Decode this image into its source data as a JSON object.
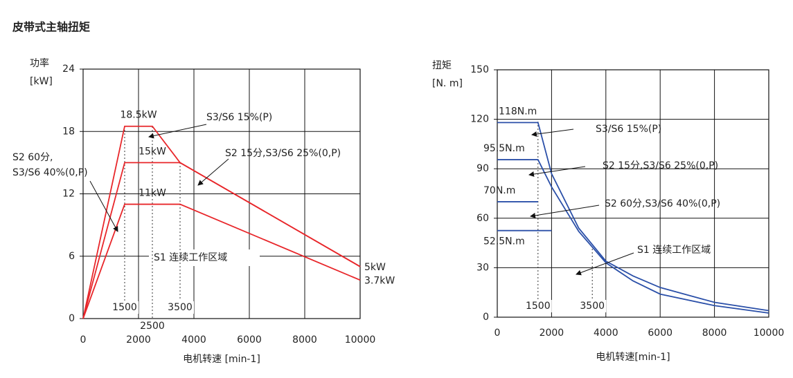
{
  "title": "皮带式主轴扭矩",
  "chart_data": [
    {
      "type": "line",
      "ylabel": "功率",
      "ylabel_unit": "[kW]",
      "xlabel": "电机转速 [min-1]",
      "xlim": [
        0,
        10000
      ],
      "xticks": [
        0,
        2000,
        4000,
        6000,
        8000,
        10000
      ],
      "ylim": [
        0,
        24
      ],
      "yticks": [
        0,
        6,
        12,
        18,
        24
      ],
      "grid": true,
      "series": [
        {
          "name": "S3/S6 15%(P)",
          "color": "#e8262a",
          "x": [
            0,
            1500,
            2500,
            3500,
            10000
          ],
          "values": [
            0,
            18.5,
            18.5,
            15,
            5
          ],
          "value_labels": [
            null,
            "18.5kW",
            null,
            null,
            "5kW"
          ]
        },
        {
          "name": "S2 15分,S3/S6 25%(0,P)",
          "color": "#e8262a",
          "x": [
            0,
            1500,
            3500,
            10000
          ],
          "values": [
            0,
            15,
            15,
            5
          ],
          "value_labels": [
            null,
            "15kW",
            null,
            null
          ]
        },
        {
          "name": "S2 60分,\nS3/S6 40%(0,P)",
          "color": "#e8262a",
          "x": [
            0,
            1500,
            3500,
            10000
          ],
          "values": [
            0,
            11,
            11,
            3.7
          ],
          "value_labels": [
            null,
            "11kW",
            null,
            "3.7kW"
          ]
        }
      ],
      "region_label": "S1 连续工作区域",
      "speed_markers": [
        1500,
        2500,
        3500
      ]
    },
    {
      "type": "line",
      "ylabel": "扭矩",
      "ylabel_unit": "[N. m]",
      "xlabel": "电机转速[min-1]",
      "xlim": [
        0,
        10000
      ],
      "xticks": [
        0,
        2000,
        4000,
        6000,
        8000,
        10000
      ],
      "ylim": [
        0,
        150
      ],
      "yticks": [
        0,
        30,
        60,
        90,
        120,
        150
      ],
      "grid": true,
      "series": [
        {
          "name": "S3/S6 15%(P)",
          "color": "#2a4fa8",
          "x": [
            0,
            1500,
            2000,
            3000,
            4000,
            5000,
            6000,
            8000,
            10000
          ],
          "values": [
            118,
            118,
            87,
            54,
            34,
            25,
            18,
            9,
            4
          ],
          "value_labels": [
            "118N.m",
            null,
            null,
            null,
            null,
            null,
            null,
            null,
            null
          ]
        },
        {
          "name": "S2 15分,S3/S6 25%(0,P)",
          "color": "#2a4fa8",
          "x": [
            0,
            1500,
            2000,
            3000,
            4000,
            5000,
            6000,
            8000,
            10000
          ],
          "values": [
            95.5,
            95.5,
            79,
            52,
            33,
            22,
            14,
            7,
            2.5
          ],
          "value_labels": [
            "95.5N.m",
            null,
            null,
            null,
            null,
            null,
            null,
            null,
            null
          ]
        },
        {
          "name": "S2 60分,S3/S6 40%(0,P)",
          "color": "#2a4fa8",
          "x": [
            0,
            1500
          ],
          "values": [
            70,
            70
          ],
          "value_labels": [
            "70N.m",
            null
          ]
        },
        {
          "name": "S1 连续工作区域",
          "color": "#2a4fa8",
          "x": [
            0,
            2000
          ],
          "values": [
            52.5,
            52.5
          ],
          "value_labels": [
            "52.5N.m",
            null
          ]
        }
      ],
      "speed_markers": [
        1500,
        3500
      ]
    }
  ]
}
